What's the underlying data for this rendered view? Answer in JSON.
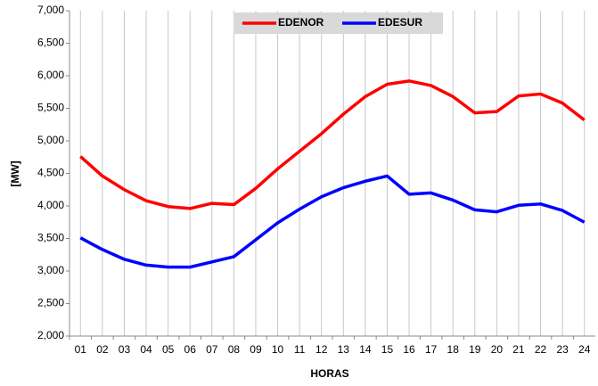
{
  "chart_data": {
    "type": "line",
    "x_label": "HORAS",
    "y_label": "[MW]",
    "categories": [
      "01",
      "02",
      "03",
      "04",
      "05",
      "06",
      "07",
      "08",
      "09",
      "10",
      "11",
      "12",
      "13",
      "14",
      "15",
      "16",
      "17",
      "18",
      "19",
      "20",
      "21",
      "22",
      "23",
      "24"
    ],
    "series": [
      {
        "name": "EDENOR",
        "color": "#ff0000",
        "values": [
          4760,
          4460,
          4250,
          4080,
          3990,
          3960,
          4040,
          4020,
          4270,
          4570,
          4840,
          5110,
          5410,
          5680,
          5870,
          5920,
          5850,
          5680,
          5430,
          5450,
          5690,
          5720,
          5580,
          5320
        ]
      },
      {
        "name": "EDESUR",
        "color": "#0000ff",
        "values": [
          3510,
          3330,
          3180,
          3090,
          3060,
          3060,
          3140,
          3220,
          3480,
          3740,
          3950,
          4140,
          4280,
          4380,
          4460,
          4180,
          4200,
          4090,
          3940,
          3910,
          4010,
          4030,
          3930,
          3750
        ]
      }
    ],
    "ylim": [
      2000,
      7000
    ],
    "yticks": [
      {
        "value": 2000,
        "label": "2,000"
      },
      {
        "value": 2500,
        "label": "2,500"
      },
      {
        "value": 3000,
        "label": "3,000"
      },
      {
        "value": 3500,
        "label": "3,500"
      },
      {
        "value": 4000,
        "label": "4,000"
      },
      {
        "value": 4500,
        "label": "4,500"
      },
      {
        "value": 5000,
        "label": "5,000"
      },
      {
        "value": 5500,
        "label": "5,500"
      },
      {
        "value": 6000,
        "label": "6,000"
      },
      {
        "value": 6500,
        "label": "6,500"
      },
      {
        "value": 7000,
        "label": "7,000"
      }
    ],
    "grid": true,
    "legend": "top"
  }
}
